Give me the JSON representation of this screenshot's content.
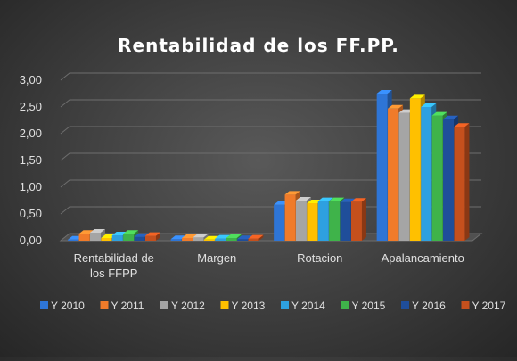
{
  "chart_data": {
    "type": "bar",
    "title": "Rentabilidad de los FF.PP.",
    "categories": [
      [
        "Rentabilidad de",
        "los FFPP"
      ],
      [
        "Margen"
      ],
      [
        "Rotacion"
      ],
      [
        "Apalancamiento"
      ]
    ],
    "ylim": [
      0,
      3
    ],
    "y_ticks": [
      "0,00",
      "0,50",
      "1,00",
      "1,50",
      "2,00",
      "2,50",
      "3,00"
    ],
    "grid": true,
    "legend_position": "bottom",
    "series": [
      {
        "name": "Y 2010",
        "color": "#2e75d6",
        "values": [
          0.02,
          0.03,
          0.67,
          2.75
        ]
      },
      {
        "name": "Y 2011",
        "color": "#f07b2a",
        "values": [
          0.13,
          0.05,
          0.86,
          2.47
        ]
      },
      {
        "name": "Y 2012",
        "color": "#a5a5a5",
        "values": [
          0.15,
          0.06,
          0.75,
          2.39
        ]
      },
      {
        "name": "Y 2013",
        "color": "#ffc000",
        "values": [
          0.05,
          0.02,
          0.7,
          2.66
        ]
      },
      {
        "name": "Y 2014",
        "color": "#2ea0e0",
        "values": [
          0.1,
          0.04,
          0.74,
          2.5
        ]
      },
      {
        "name": "Y 2015",
        "color": "#3fb34a",
        "values": [
          0.13,
          0.05,
          0.74,
          2.34
        ]
      },
      {
        "name": "Y 2016",
        "color": "#1f4e9a",
        "values": [
          0.07,
          0.03,
          0.72,
          2.27
        ]
      },
      {
        "name": "Y 2017",
        "color": "#c5501d",
        "values": [
          0.09,
          0.04,
          0.73,
          2.13
        ]
      }
    ]
  }
}
